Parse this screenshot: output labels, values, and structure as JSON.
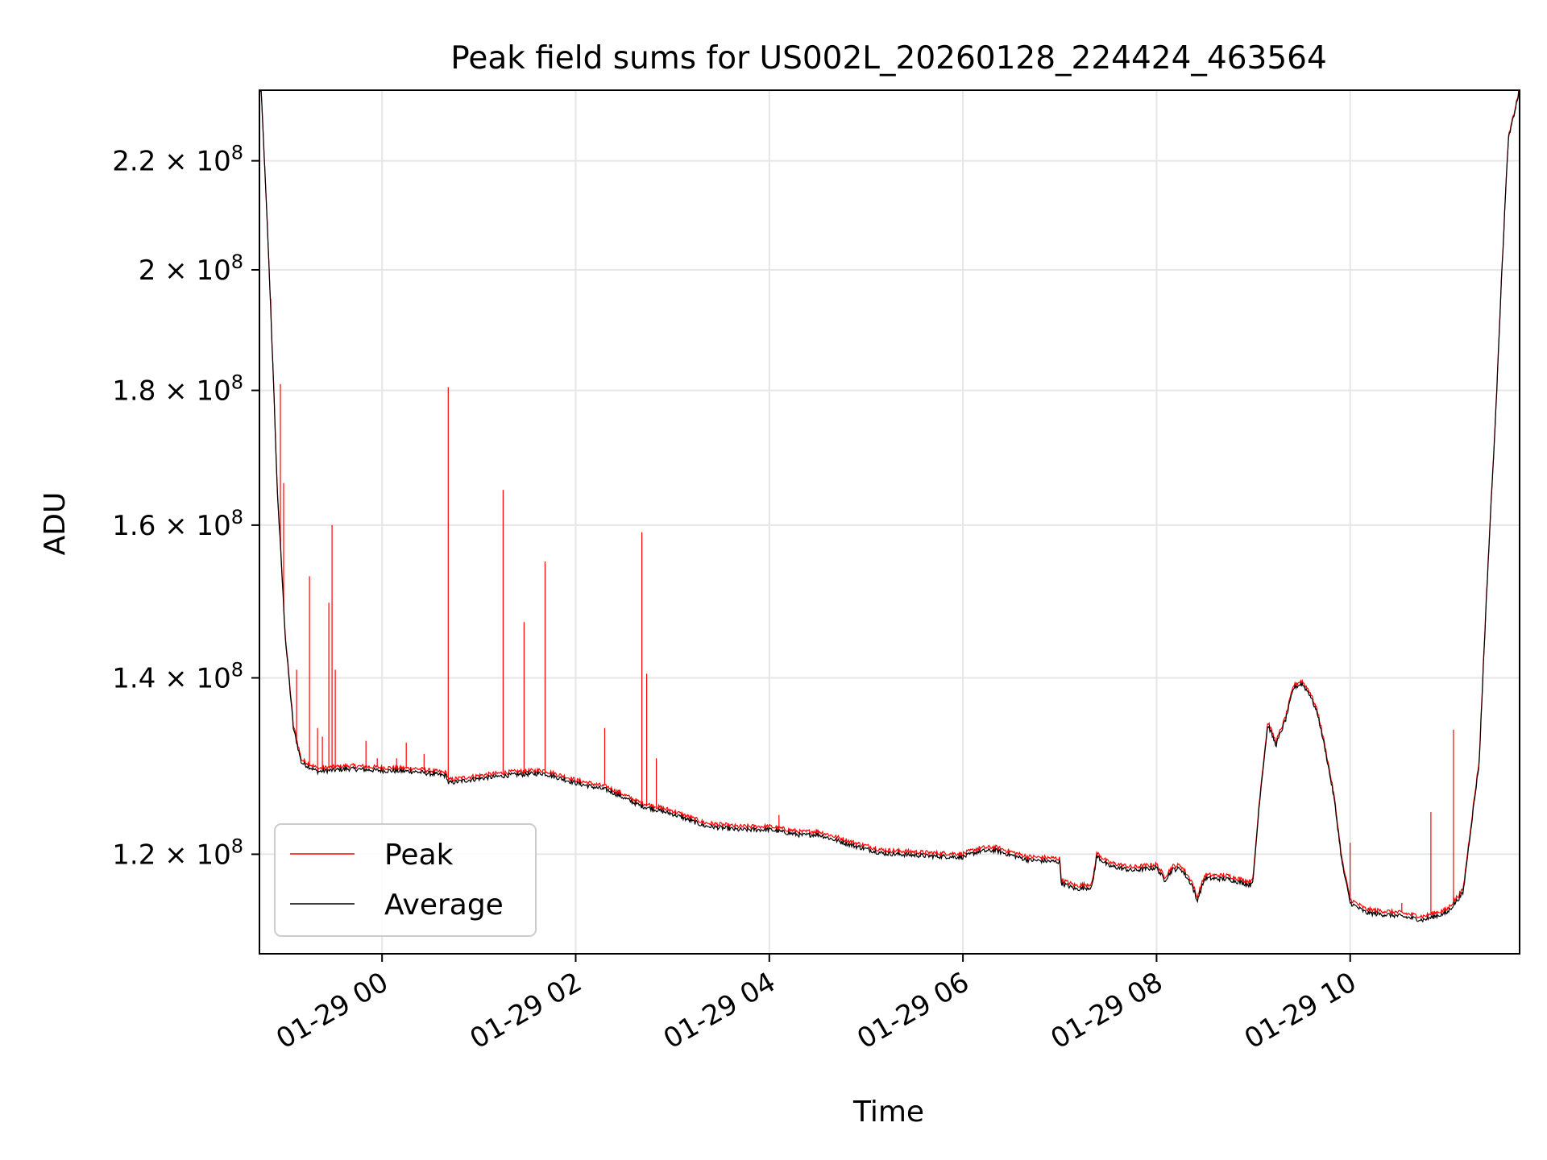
{
  "chart_data": {
    "type": "line",
    "title": "Peak field sums for US002L_20260128_224424_463564",
    "xlabel": "Time",
    "ylabel": "ADU",
    "x_range": [
      "2026-01-28 22:44",
      "2026-01-29 11:45"
    ],
    "ylim": [
      110000000,
      234000000
    ],
    "yscale": "log",
    "grid": true,
    "legend_position": "lower-left",
    "x_ticks": [
      {
        "time": "2026-01-29 00:00",
        "label": "01-29 00"
      },
      {
        "time": "2026-01-29 02:00",
        "label": "01-29 02"
      },
      {
        "time": "2026-01-29 04:00",
        "label": "01-29 04"
      },
      {
        "time": "2026-01-29 06:00",
        "label": "01-29 06"
      },
      {
        "time": "2026-01-29 08:00",
        "label": "01-29 08"
      },
      {
        "time": "2026-01-29 10:00",
        "label": "01-29 10"
      }
    ],
    "y_ticks": [
      {
        "value": 120000000,
        "mantissa": "1.2",
        "exponent": "8"
      },
      {
        "value": 140000000,
        "mantissa": "1.4",
        "exponent": "8"
      },
      {
        "value": 160000000,
        "mantissa": "1.6",
        "exponent": "8"
      },
      {
        "value": 180000000,
        "mantissa": "1.8",
        "exponent": "8"
      },
      {
        "value": 200000000,
        "mantissa": "2",
        "exponent": "8"
      },
      {
        "value": 220000000,
        "mantissa": "2.2",
        "exponent": "8"
      }
    ],
    "series": [
      {
        "name": "Average",
        "color": "#000000",
        "points": [
          [
            "2026-01-28 22:45",
            234000000
          ],
          [
            "2026-01-28 22:50",
            200000000
          ],
          [
            "2026-01-28 22:55",
            165000000
          ],
          [
            "2026-01-28 23:00",
            145000000
          ],
          [
            "2026-01-28 23:05",
            134000000
          ],
          [
            "2026-01-28 23:10",
            130000000
          ],
          [
            "2026-01-28 23:20",
            129000000
          ],
          [
            "2026-01-28 23:40",
            129300000
          ],
          [
            "2026-01-29 00:00",
            129100000
          ],
          [
            "2026-01-29 00:20",
            129000000
          ],
          [
            "2026-01-29 00:40",
            128500000
          ],
          [
            "2026-01-29 00:41",
            127700000
          ],
          [
            "2026-01-29 01:00",
            128200000
          ],
          [
            "2026-01-29 01:20",
            128600000
          ],
          [
            "2026-01-29 01:40",
            128800000
          ],
          [
            "2026-01-29 02:00",
            127700000
          ],
          [
            "2026-01-29 02:20",
            126900000
          ],
          [
            "2026-01-29 02:40",
            125200000
          ],
          [
            "2026-01-29 03:00",
            124300000
          ],
          [
            "2026-01-29 03:20",
            123000000
          ],
          [
            "2026-01-29 03:40",
            122600000
          ],
          [
            "2026-01-29 04:00",
            122600000
          ],
          [
            "2026-01-29 04:20",
            122000000
          ],
          [
            "2026-01-29 04:30",
            122100000
          ],
          [
            "2026-01-29 04:50",
            121000000
          ],
          [
            "2026-01-29 05:10",
            120100000
          ],
          [
            "2026-01-29 05:40",
            119800000
          ],
          [
            "2026-01-29 06:00",
            119700000
          ],
          [
            "2026-01-29 06:10",
            120300000
          ],
          [
            "2026-01-29 06:20",
            120400000
          ],
          [
            "2026-01-29 06:40",
            119400000
          ],
          [
            "2026-01-29 07:00",
            119200000
          ],
          [
            "2026-01-29 07:01",
            117000000
          ],
          [
            "2026-01-29 07:10",
            116400000
          ],
          [
            "2026-01-29 07:20",
            116600000
          ],
          [
            "2026-01-29 07:23",
            119800000
          ],
          [
            "2026-01-29 07:30",
            118800000
          ],
          [
            "2026-01-29 07:45",
            118300000
          ],
          [
            "2026-01-29 08:00",
            118600000
          ],
          [
            "2026-01-29 08:05",
            117300000
          ],
          [
            "2026-01-29 08:10",
            118400000
          ],
          [
            "2026-01-29 08:15",
            118500000
          ],
          [
            "2026-01-29 08:22",
            116800000
          ],
          [
            "2026-01-29 08:25",
            115200000
          ],
          [
            "2026-01-29 08:30",
            117500000
          ],
          [
            "2026-01-29 08:45",
            117400000
          ],
          [
            "2026-01-29 08:58",
            116800000
          ],
          [
            "2026-01-29 09:00",
            117500000
          ],
          [
            "2026-01-29 09:04",
            126000000
          ],
          [
            "2026-01-29 09:09",
            134400000
          ],
          [
            "2026-01-29 09:14",
            132000000
          ],
          [
            "2026-01-29 09:20",
            135000000
          ],
          [
            "2026-01-29 09:25",
            138800000
          ],
          [
            "2026-01-29 09:30",
            139300000
          ],
          [
            "2026-01-29 09:35",
            138000000
          ],
          [
            "2026-01-29 09:40",
            135500000
          ],
          [
            "2026-01-29 09:45",
            131000000
          ],
          [
            "2026-01-29 09:50",
            126000000
          ],
          [
            "2026-01-29 09:55",
            119000000
          ],
          [
            "2026-01-29 10:00",
            115000000
          ],
          [
            "2026-01-29 10:10",
            114000000
          ],
          [
            "2026-01-29 10:30",
            113700000
          ],
          [
            "2026-01-29 10:45",
            113300000
          ],
          [
            "2026-01-29 11:00",
            114000000
          ],
          [
            "2026-01-29 11:10",
            116000000
          ],
          [
            "2026-01-29 11:20",
            130000000
          ],
          [
            "2026-01-29 11:30",
            175000000
          ],
          [
            "2026-01-29 11:38",
            224000000
          ],
          [
            "2026-01-29 11:45",
            234000000
          ]
        ]
      },
      {
        "name": "Peak",
        "color": "#ff0000",
        "baseline_offset": 350000,
        "spikes": [
          [
            "2026-01-28 22:51",
            195000000
          ],
          [
            "2026-01-28 22:57",
            181000000
          ],
          [
            "2026-01-28 22:59",
            166000000
          ],
          [
            "2026-01-28 23:07",
            141000000
          ],
          [
            "2026-01-28 23:15",
            153000000
          ],
          [
            "2026-01-28 23:20",
            134000000
          ],
          [
            "2026-01-28 23:23",
            133000000
          ],
          [
            "2026-01-28 23:27",
            149500000
          ],
          [
            "2026-01-28 23:29",
            160000000
          ],
          [
            "2026-01-28 23:31",
            141000000
          ],
          [
            "2026-01-28 23:50",
            132500000
          ],
          [
            "2026-01-28 23:57",
            130500000
          ],
          [
            "2026-01-29 00:09",
            130500000
          ],
          [
            "2026-01-29 00:15",
            132300000
          ],
          [
            "2026-01-29 00:26",
            131000000
          ],
          [
            "2026-01-29 00:41",
            180500000
          ],
          [
            "2026-01-29 01:15",
            165000000
          ],
          [
            "2026-01-29 01:28",
            147000000
          ],
          [
            "2026-01-29 01:41",
            155000000
          ],
          [
            "2026-01-29 02:18",
            134000000
          ],
          [
            "2026-01-29 02:27",
            126700000
          ],
          [
            "2026-01-29 02:41",
            159000000
          ],
          [
            "2026-01-29 02:44",
            140500000
          ],
          [
            "2026-01-29 02:50",
            130500000
          ],
          [
            "2026-01-29 04:06",
            124200000
          ],
          [
            "2026-01-29 10:00",
            121200000
          ],
          [
            "2026-01-29 10:32",
            115000000
          ],
          [
            "2026-01-29 10:50",
            124500000
          ],
          [
            "2026-01-29 11:04",
            133800000
          ]
        ]
      }
    ]
  }
}
